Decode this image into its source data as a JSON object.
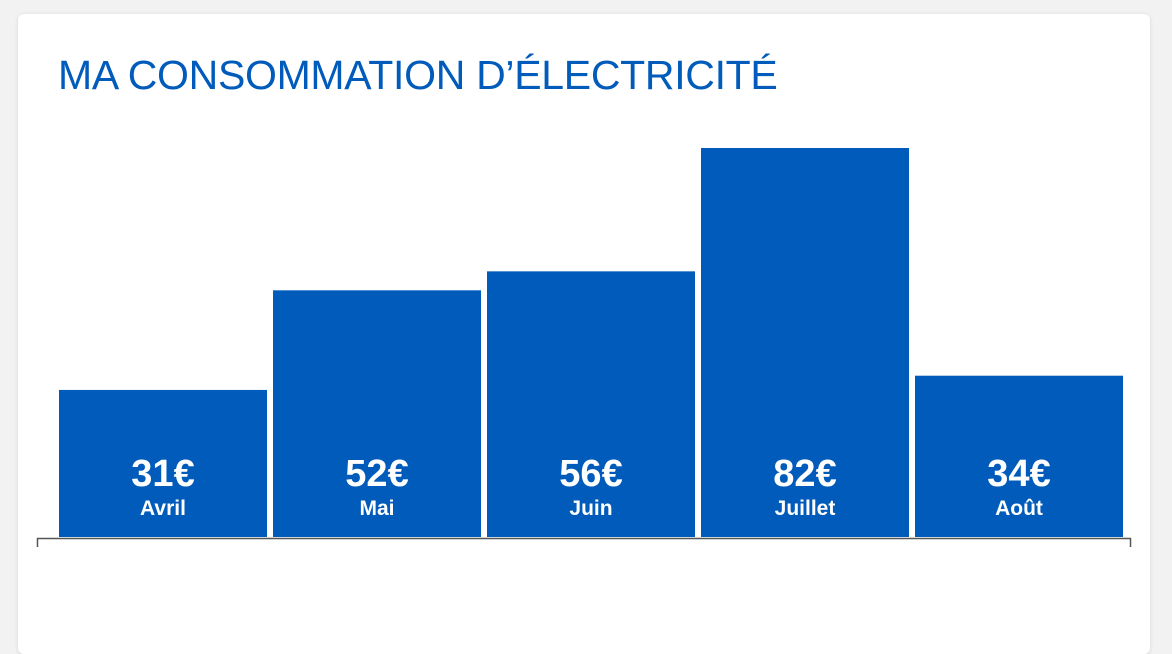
{
  "colors": {
    "accent": "#005bbb",
    "axis": "#555555",
    "bar_text": "#ffffff"
  },
  "chart_data": {
    "type": "bar",
    "title": "MA CONSOMMATION D’ÉLECTRICITÉ",
    "categories": [
      "Avril",
      "Mai",
      "Juin",
      "Juillet",
      "Août"
    ],
    "values": [
      31,
      52,
      56,
      82,
      34
    ],
    "value_labels": [
      "31€",
      "52€",
      "56€",
      "82€",
      "34€"
    ],
    "unit": "€",
    "xlabel": "",
    "ylabel": "",
    "ylim": [
      0,
      82
    ],
    "grid": false,
    "legend": "none"
  }
}
